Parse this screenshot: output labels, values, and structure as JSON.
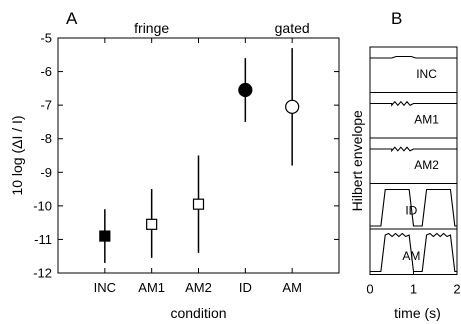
{
  "chart_data": [
    {
      "panel": "A",
      "type": "scatter",
      "xlabel": "condition",
      "ylabel": "10 log (ΔI / I)",
      "categories": [
        "INC",
        "AM1",
        "AM2",
        "ID",
        "AM"
      ],
      "ylim": [
        -12,
        -5
      ],
      "yticks": [
        -12,
        -11,
        -10,
        -9,
        -8,
        -7,
        -6,
        -5
      ],
      "group_labels": [
        {
          "text": "fringe",
          "category_index": 1
        },
        {
          "text": "gated",
          "category_index": 4
        }
      ],
      "points": [
        {
          "x": "INC",
          "y": -10.9,
          "lo": -11.7,
          "hi": -10.1,
          "marker": "square",
          "filled": true
        },
        {
          "x": "AM1",
          "y": -10.55,
          "lo": -11.55,
          "hi": -9.5,
          "marker": "square",
          "filled": false
        },
        {
          "x": "AM2",
          "y": -9.95,
          "lo": -11.4,
          "hi": -8.5,
          "marker": "square",
          "filled": false
        },
        {
          "x": "ID",
          "y": -6.55,
          "lo": -7.5,
          "hi": -5.6,
          "marker": "circle",
          "filled": true
        },
        {
          "x": "AM",
          "y": -7.05,
          "lo": -8.8,
          "hi": -5.3,
          "marker": "circle",
          "filled": false
        }
      ],
      "grid": false
    },
    {
      "panel": "B",
      "type": "line",
      "xlabel": "time (s)",
      "ylabel": "Hilbert envelope",
      "xlim": [
        0,
        2
      ],
      "xticks": [
        0,
        1,
        2
      ],
      "rows": [
        {
          "label": "INC",
          "shape": "flat_bump"
        },
        {
          "label": "AM1",
          "shape": "flat_wiggle"
        },
        {
          "label": "AM2",
          "shape": "flat_wiggle"
        },
        {
          "label": "ID",
          "shape": "two_pulses"
        },
        {
          "label": "AM",
          "shape": "two_pulses_wiggle"
        }
      ]
    }
  ]
}
